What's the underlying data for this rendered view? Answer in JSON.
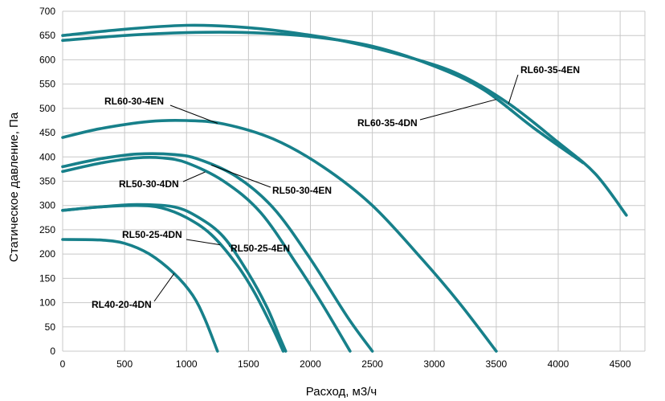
{
  "chart_data": {
    "type": "line",
    "xlabel": "Расход, м3/ч",
    "ylabel": "Статическое давление, Па",
    "xlim": [
      0,
      4700
    ],
    "ylim": [
      0,
      700
    ],
    "x_ticks": [
      0,
      500,
      1000,
      1500,
      2000,
      2500,
      3000,
      3500,
      4000,
      4500
    ],
    "y_ticks": [
      0,
      50,
      100,
      150,
      200,
      250,
      300,
      350,
      400,
      450,
      500,
      550,
      600,
      650,
      700
    ],
    "grid": true,
    "legend": "none",
    "line_color": "#17808a",
    "series": [
      {
        "name": "RL40-20-4DN",
        "points": [
          [
            0,
            230
          ],
          [
            300,
            229
          ],
          [
            500,
            222
          ],
          [
            700,
            200
          ],
          [
            900,
            160
          ],
          [
            1050,
            115
          ],
          [
            1150,
            65
          ],
          [
            1250,
            0
          ]
        ]
      },
      {
        "name": "RL50-25-4DN",
        "points": [
          [
            0,
            290
          ],
          [
            300,
            297
          ],
          [
            600,
            300
          ],
          [
            800,
            295
          ],
          [
            1000,
            275
          ],
          [
            1200,
            240
          ],
          [
            1400,
            180
          ],
          [
            1550,
            120
          ],
          [
            1700,
            45
          ],
          [
            1780,
            0
          ]
        ]
      },
      {
        "name": "RL50-25-4EN",
        "points": [
          [
            0,
            290
          ],
          [
            300,
            297
          ],
          [
            600,
            302
          ],
          [
            900,
            297
          ],
          [
            1100,
            275
          ],
          [
            1300,
            235
          ],
          [
            1500,
            160
          ],
          [
            1650,
            90
          ],
          [
            1750,
            30
          ],
          [
            1800,
            0
          ]
        ]
      },
      {
        "name": "RL50-30-4DN",
        "points": [
          [
            0,
            370
          ],
          [
            300,
            387
          ],
          [
            600,
            398
          ],
          [
            800,
            398
          ],
          [
            1000,
            388
          ],
          [
            1300,
            350
          ],
          [
            1600,
            285
          ],
          [
            1900,
            175
          ],
          [
            2100,
            95
          ],
          [
            2320,
            0
          ]
        ]
      },
      {
        "name": "RL50-30-4EN",
        "points": [
          [
            0,
            380
          ],
          [
            300,
            396
          ],
          [
            600,
            406
          ],
          [
            900,
            405
          ],
          [
            1100,
            395
          ],
          [
            1400,
            360
          ],
          [
            1700,
            295
          ],
          [
            2000,
            190
          ],
          [
            2300,
            70
          ],
          [
            2500,
            0
          ]
        ]
      },
      {
        "name": "RL60-30-4EN",
        "points": [
          [
            0,
            440
          ],
          [
            300,
            458
          ],
          [
            700,
            473
          ],
          [
            1000,
            475
          ],
          [
            1300,
            468
          ],
          [
            1700,
            437
          ],
          [
            2100,
            380
          ],
          [
            2500,
            300
          ],
          [
            2900,
            190
          ],
          [
            3200,
            100
          ],
          [
            3500,
            0
          ]
        ]
      },
      {
        "name": "RL60-35-4DN",
        "points": [
          [
            0,
            640
          ],
          [
            500,
            650
          ],
          [
            1000,
            656
          ],
          [
            1500,
            656
          ],
          [
            2000,
            648
          ],
          [
            2500,
            628
          ],
          [
            3000,
            587
          ],
          [
            3400,
            538
          ],
          [
            3800,
            460
          ],
          [
            4200,
            388
          ]
        ]
      },
      {
        "name": "RL60-35-4EN",
        "points": [
          [
            0,
            650
          ],
          [
            500,
            663
          ],
          [
            1000,
            671
          ],
          [
            1400,
            668
          ],
          [
            1800,
            658
          ],
          [
            2300,
            637
          ],
          [
            2800,
            605
          ],
          [
            3200,
            570
          ],
          [
            3600,
            510
          ],
          [
            4000,
            430
          ],
          [
            4300,
            365
          ],
          [
            4550,
            280
          ]
        ]
      }
    ],
    "annotations": [
      {
        "text": "RL60-35-4EN",
        "series": "RL60-35-4EN",
        "at_x": 3600
      },
      {
        "text": "RL60-35-4DN",
        "series": "RL60-35-4DN",
        "at_x": 3500
      },
      {
        "text": "RL60-30-4EN",
        "series": "RL60-30-4EN",
        "at_x": 1250
      },
      {
        "text": "RL50-30-4DN",
        "series": "RL50-30-4DN",
        "at_x": 1150
      },
      {
        "text": "RL50-30-4EN",
        "series": "RL50-30-4EN",
        "at_x": 1200
      },
      {
        "text": "RL50-25-4DN",
        "series": "RL50-25-4DN",
        "at_x": 1270
      },
      {
        "text": "RL50-25-4EN",
        "series": "RL50-25-4EN",
        "at_x": 1350
      },
      {
        "text": "RL40-20-4DN",
        "series": "RL40-20-4DN",
        "at_x": 900
      }
    ]
  }
}
